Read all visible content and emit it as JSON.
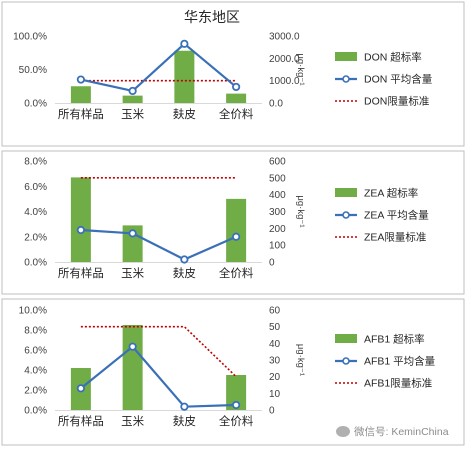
{
  "watermark": {
    "text": "微信号: KeminChina",
    "icon": "wechat-icon"
  },
  "colors": {
    "bar": "#70ad47",
    "line": "#3a70b8",
    "limit": "#c00000",
    "panel_border": "#bfbfbf",
    "grid": "#d9d9d9"
  },
  "chart_data": [
    {
      "type": "bar",
      "title": "华东地区",
      "categories": [
        "所有样品",
        "玉米",
        "麸皮",
        "全价料"
      ],
      "y_left": {
        "ticks": [
          "0.0%",
          "50.0%",
          "100.0%"
        ],
        "lim": [
          0,
          100
        ]
      },
      "y_right": {
        "ticks": [
          "0.0",
          "1000.0",
          "2000.0",
          "3000.0"
        ],
        "lim": [
          0,
          3000
        ],
        "label": "μg·kg⁻¹"
      },
      "series": [
        {
          "name": "DON 超标率",
          "kind": "bar",
          "axis": "left",
          "values": [
            25,
            11,
            78,
            14
          ]
        },
        {
          "name": "DON 平均含量",
          "kind": "line",
          "axis": "right",
          "values": [
            1050,
            540,
            2650,
            720
          ]
        },
        {
          "name": "DON限量标准",
          "kind": "limit",
          "axis": "right",
          "values": [
            1000,
            1000,
            1000,
            1000
          ]
        }
      ],
      "legend_position": "right"
    },
    {
      "type": "bar",
      "title": "",
      "categories": [
        "所有样品",
        "玉米",
        "麸皮",
        "全价料"
      ],
      "y_left": {
        "ticks": [
          "0.0%",
          "2.0%",
          "4.0%",
          "6.0%",
          "8.0%"
        ],
        "lim": [
          0,
          8
        ]
      },
      "y_right": {
        "ticks": [
          "0",
          "100",
          "200",
          "300",
          "400",
          "500",
          "600"
        ],
        "lim": [
          0,
          600
        ],
        "label": "μg·kg⁻¹"
      },
      "series": [
        {
          "name": "ZEA 超标率",
          "kind": "bar",
          "axis": "left",
          "values": [
            6.7,
            2.9,
            0,
            5.0
          ]
        },
        {
          "name": "ZEA 平均含量",
          "kind": "line",
          "axis": "right",
          "values": [
            190,
            170,
            15,
            150
          ]
        },
        {
          "name": "ZEA限量标准",
          "kind": "limit",
          "axis": "right",
          "values": [
            500,
            500,
            500,
            500
          ]
        }
      ],
      "legend_position": "right"
    },
    {
      "type": "bar",
      "title": "",
      "categories": [
        "所有样品",
        "玉米",
        "麸皮",
        "全价料"
      ],
      "y_left": {
        "ticks": [
          "0.0%",
          "2.0%",
          "4.0%",
          "6.0%",
          "8.0%",
          "10.0%"
        ],
        "lim": [
          0,
          10
        ]
      },
      "y_right": {
        "ticks": [
          "0",
          "10",
          "20",
          "30",
          "40",
          "50",
          "60"
        ],
        "lim": [
          0,
          60
        ],
        "label": "μg·kg⁻¹"
      },
      "series": [
        {
          "name": "AFB1 超标率",
          "kind": "bar",
          "axis": "left",
          "values": [
            4.2,
            8.5,
            0,
            3.5
          ]
        },
        {
          "name": "AFB1 平均含量",
          "kind": "line",
          "axis": "right",
          "values": [
            13,
            38,
            2,
            3
          ]
        },
        {
          "name": "AFB1限量标准",
          "kind": "limit",
          "axis": "right",
          "values": [
            50,
            50,
            50,
            20
          ]
        }
      ],
      "legend_position": "right"
    }
  ]
}
